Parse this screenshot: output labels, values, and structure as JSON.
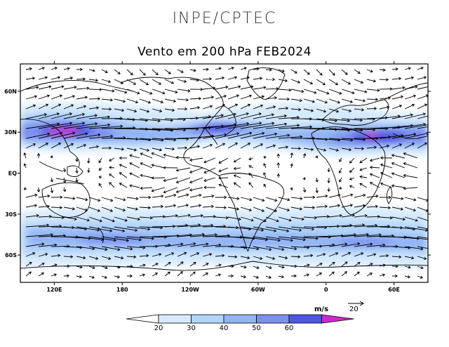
{
  "header": {
    "organization": "INPE/CPTEC",
    "title": "Vento em 200 hPa FEB2024"
  },
  "map": {
    "lon_range": [
      90,
      450
    ],
    "lat_range": [
      -80,
      80
    ],
    "x_ticks": [
      "120E",
      "180",
      "120W",
      "60W",
      "0",
      "60E"
    ],
    "x_tick_lons": [
      120,
      180,
      240,
      300,
      360,
      420
    ],
    "y_ticks": [
      "60N",
      "30N",
      "EQ",
      "30S",
      "60S"
    ],
    "y_tick_lats": [
      60,
      30,
      0,
      -30,
      -60
    ]
  },
  "legend": {
    "unit": "m/s",
    "ref_vector_value": "20",
    "levels": [
      "20",
      "30",
      "40",
      "50",
      "60"
    ],
    "colors": [
      "#ffffff",
      "#d6eaff",
      "#b2d4fb",
      "#93b4f5",
      "#7c90ee",
      "#4f55e4",
      "#d028d0"
    ]
  }
}
